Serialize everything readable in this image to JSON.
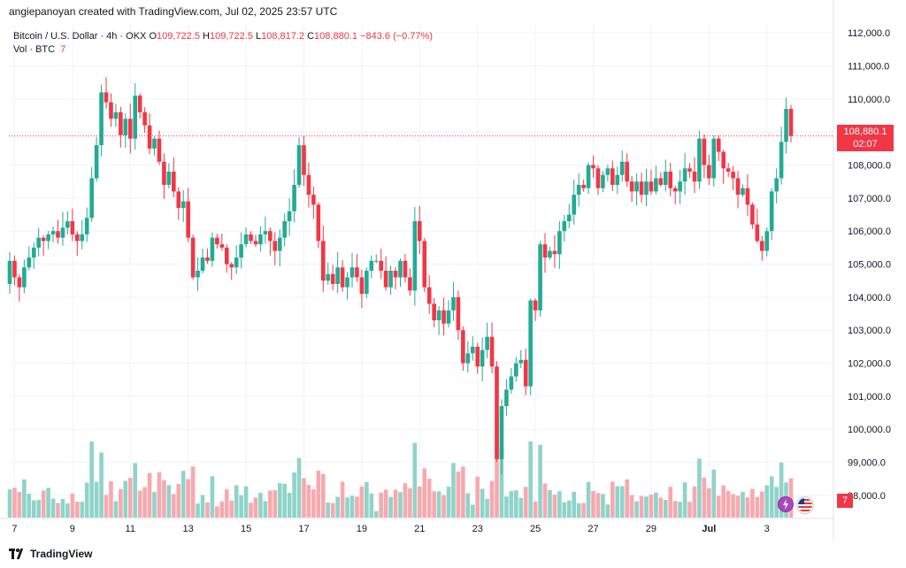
{
  "header": {
    "caption": "angiepanoyan created with TradingView.com, Jul 02, 2025 23:57 UTC"
  },
  "legend": {
    "symbol": "Bitcoin / U.S. Dollar · 4h · OKX",
    "o_label": "O",
    "o_value": "109,722.5",
    "h_label": "H",
    "h_value": "109,722.5",
    "l_label": "L",
    "l_value": "108,817.2",
    "c_label": "C",
    "c_value": "108,880.1",
    "change": "−843.6 (−0.77%)",
    "vol_label": "Vol · BTC",
    "vol_value": "7"
  },
  "price_tag": {
    "price": "108,880.1",
    "countdown": "02:07"
  },
  "vol_tag": "7",
  "footer": {
    "brand": "TradingView"
  },
  "colors": {
    "up": "#22ab94",
    "down": "#f23645",
    "vol_up": "#8fd3c9",
    "vol_down": "#f7a9ae",
    "grid": "#f0f3fa"
  },
  "icons": [
    "tradingview-logo-icon",
    "lightning-event-icon",
    "us-flag-event-icon"
  ],
  "chart_data": {
    "type": "candlestick",
    "title": "Bitcoin / U.S. Dollar · 4h · OKX",
    "ylim": [
      97300,
      112300
    ],
    "y_ticks": [
      "112,000.0",
      "111,000.0",
      "110,000.0",
      "109,000.0",
      "108,000.0",
      "107,000.0",
      "106,000.0",
      "105,000.0",
      "104,000.0",
      "103,000.0",
      "102,000.0",
      "101,000.0",
      "100,000.0",
      "99,000.0",
      "98,000.0"
    ],
    "y_tick_values": [
      112000,
      111000,
      110000,
      109000,
      108000,
      107000,
      106000,
      105000,
      104000,
      103000,
      102000,
      101000,
      100000,
      99000,
      98000
    ],
    "x_ticks": [
      "7",
      "9",
      "11",
      "13",
      "15",
      "17",
      "19",
      "21",
      "23",
      "25",
      "27",
      "29",
      "Jul",
      "3"
    ],
    "x_tick_index": [
      1,
      13,
      25,
      37,
      49,
      61,
      73,
      85,
      97,
      109,
      121,
      133,
      145,
      157
    ],
    "last_price": 108880.1,
    "ohlc_close": [
      105100,
      104600,
      104300,
      104900,
      105200,
      105500,
      105800,
      105700,
      105900,
      106000,
      105800,
      106100,
      106300,
      105900,
      105700,
      105900,
      106400,
      107600,
      108600,
      110200,
      109900,
      109400,
      109600,
      108900,
      109400,
      108800,
      110100,
      109600,
      109200,
      108500,
      108800,
      108100,
      107400,
      107800,
      107200,
      106700,
      106900,
      105800,
      104600,
      104800,
      105200,
      105100,
      105800,
      105600,
      105500,
      105000,
      104900,
      105200,
      105600,
      105900,
      105700,
      105600,
      105900,
      106000,
      105700,
      105400,
      105800,
      106300,
      106600,
      107400,
      108600,
      107700,
      107100,
      106800,
      105700,
      104500,
      104700,
      104400,
      104900,
      104300,
      104600,
      104900,
      104600,
      104100,
      104800,
      105100,
      105100,
      104800,
      104300,
      104800,
      104600,
      105100,
      104600,
      104200,
      106300,
      105700,
      104300,
      103800,
      103300,
      103600,
      103200,
      103600,
      104000,
      103000,
      102000,
      102300,
      102500,
      101900,
      102400,
      102800,
      101900,
      99100,
      100700,
      101200,
      101600,
      102000,
      102100,
      101300,
      103900,
      103600,
      105600,
      105200,
      105400,
      105300,
      106000,
      106300,
      106500,
      107100,
      107400,
      107300,
      108000,
      107900,
      107300,
      107700,
      107900,
      107400,
      107700,
      108100,
      107500,
      107200,
      107500,
      107100,
      107500,
      107200,
      107600,
      107400,
      107800,
      107300,
      107200,
      107500,
      107900,
      107800,
      107500,
      108800,
      108000,
      107600,
      108800,
      108400,
      107900,
      107800,
      107600,
      107100,
      107300,
      106800,
      106200,
      105700,
      105400,
      106000,
      107200,
      107600,
      108700,
      109700,
      108880
    ]
  }
}
